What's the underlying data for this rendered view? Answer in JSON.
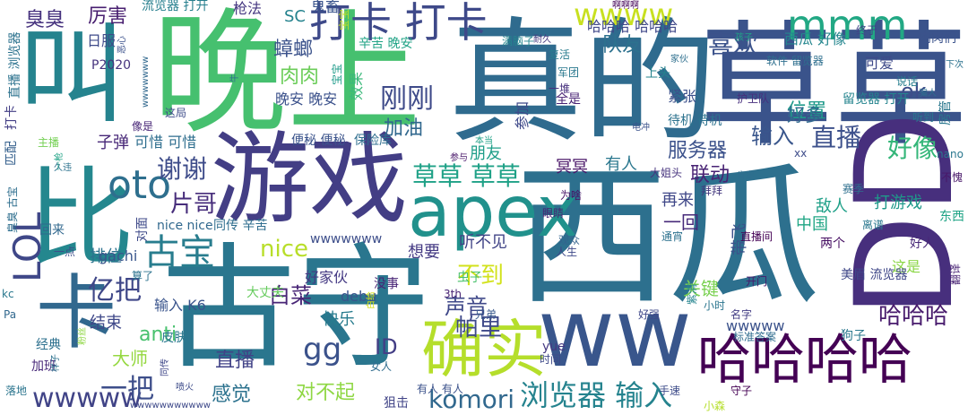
{
  "words": [
    {
      "t": "真的",
      "c": "#2f6b8e"
    },
    {
      "t": "草草",
      "c": "#3a538b"
    },
    {
      "t": "西瓜",
      "c": "#2d708e"
    },
    {
      "t": "晚上",
      "c": "#46c06f"
    },
    {
      "t": "游戏",
      "c": "#433e85"
    },
    {
      "t": "古守",
      "c": "#2a768e"
    },
    {
      "t": "apex",
      "c": "#21918c"
    },
    {
      "t": "ww",
      "c": "#39568c"
    },
    {
      "t": "DD",
      "c": "#472f7d"
    },
    {
      "t": "哈哈哈哈",
      "c": "#440154"
    },
    {
      "t": "确实",
      "c": "#b5de2b"
    },
    {
      "t": "打卡 打卡",
      "c": "#3e4989"
    },
    {
      "t": "mmm",
      "c": "#22a884"
    },
    {
      "t": "wwww",
      "c": "#c8e020"
    },
    {
      "t": "oto",
      "c": "#2e6f8e"
    },
    {
      "t": "草草 草草",
      "c": "#1fa187"
    },
    {
      "t": "浏览器 输入",
      "c": "#25838e"
    },
    {
      "t": "komori",
      "c": "#31688e"
    },
    {
      "t": "wwwww",
      "c": "#414487"
    },
    {
      "t": "喜欢",
      "c": "#3b528b"
    },
    {
      "t": "刚刚",
      "c": "#3e4a89"
    },
    {
      "t": "直播",
      "c": "#3c508b"
    },
    {
      "t": "好像",
      "c": "#34b679"
    },
    {
      "t": "一把",
      "c": "#3d4e8a"
    },
    {
      "t": "亿把",
      "c": "#3f4788"
    },
    {
      "t": "古宝",
      "c": "#287d8e"
    },
    {
      "t": "谢谢",
      "c": "#3e4c8a"
    },
    {
      "t": "片哥",
      "c": "#472d7b"
    },
    {
      "t": "nice",
      "c": "#b8de29"
    },
    {
      "t": "gg",
      "c": "#3b528b"
    },
    {
      "t": "对不起",
      "c": "#8fd744"
    },
    {
      "t": "感觉",
      "c": "#2c728e"
    },
    {
      "t": "哈哈哈",
      "c": "#481b6d"
    },
    {
      "t": "声音",
      "c": "#3f4889"
    },
    {
      "t": "帕里",
      "c": "#3e4989"
    },
    {
      "t": "不到",
      "c": "#d2e21b"
    },
    {
      "t": "白菜",
      "c": "#482576"
    },
    {
      "t": "ID",
      "c": "#433e85"
    },
    {
      "t": "直播",
      "c": "#414287"
    },
    {
      "t": "anti",
      "c": "#48c16e"
    },
    {
      "t": "大师",
      "c": "#95d840"
    },
    {
      "t": "输入 K6",
      "c": "#3a548c"
    },
    {
      "t": "排位",
      "c": "#2c728e"
    },
    {
      "t": "结束",
      "c": "#3f4889"
    },
    {
      "t": "快乐",
      "c": "#287c8e"
    },
    {
      "t": "位置",
      "c": "#1f9a8a"
    },
    {
      "t": "好多",
      "c": "#31688e"
    },
    {
      "t": "服务器",
      "c": "#3b518b"
    },
    {
      "t": "输入",
      "c": "#39568c"
    },
    {
      "t": "联动",
      "c": "#482374"
    },
    {
      "t": "队友",
      "c": "#2d718e"
    },
    {
      "t": "ok",
      "c": "#3d4d8a"
    },
    {
      "t": "肉肉",
      "c": "#6ccd5a"
    },
    {
      "t": "加油",
      "c": "#31688e"
    },
    {
      "t": "蟑螂",
      "c": "#3b528b"
    },
    {
      "t": "臭臭",
      "c": "#46327e"
    },
    {
      "t": "厉害",
      "c": "#481f70"
    },
    {
      "t": "日服",
      "c": "#3e4a89"
    },
    {
      "t": "哈哈哈 哈哈哈",
      "c": "#3f4788"
    },
    {
      "t": "西瓜 好像",
      "c": "#24868e"
    },
    {
      "t": "可爱",
      "c": "#3e4989"
    },
    {
      "t": "子弹",
      "c": "#482878"
    },
    {
      "t": "可惜 可惜",
      "c": "#2e6e8e"
    },
    {
      "t": "晚安 晚安",
      "c": "#3b518b"
    },
    {
      "t": "有人",
      "c": "#2a778e"
    },
    {
      "t": "再来",
      "c": "#3f4788"
    },
    {
      "t": "一回",
      "c": "#472a7a"
    },
    {
      "t": "打游戏",
      "c": "#1f998a"
    },
    {
      "t": "敌人",
      "c": "#1fa088"
    },
    {
      "t": "听不见",
      "c": "#414487"
    },
    {
      "t": "想要",
      "c": "#443a83"
    },
    {
      "t": "好家伙",
      "c": "#443983"
    },
    {
      "t": "wwwwwww",
      "c": "#3d4e8a"
    },
    {
      "t": "关键",
      "c": "#7ad151"
    },
    {
      "t": "中国",
      "c": "#21a685"
    },
    {
      "t": "两个",
      "c": "#471063"
    },
    {
      "t": "这是",
      "c": "#8bd646"
    },
    {
      "t": "wwwww",
      "c": "#3b528b"
    },
    {
      "t": "debu",
      "c": "#3a548c"
    },
    {
      "t": "没事",
      "c": "#482475"
    },
    {
      "t": "gachi",
      "c": "#39568c"
    },
    {
      "t": "nice nice",
      "c": "#31688e"
    },
    {
      "t": "冥冥",
      "c": "#481467"
    },
    {
      "t": "朋友",
      "c": "#1f9e89"
    },
    {
      "t": "宝宝",
      "c": "#1e9b8a"
    },
    {
      "t": "SC",
      "c": "#25838e"
    },
    {
      "t": "鬼畜",
      "c": "#3a548c"
    },
    {
      "t": "辛苦 晚安",
      "c": "#20a386"
    },
    {
      "t": "枪法",
      "c": "#453781"
    },
    {
      "t": "流览器 打开",
      "c": "#277f8e"
    },
    {
      "t": "留览器 打开",
      "c": "#25848e"
    },
    {
      "t": "待机 待机",
      "c": "#2c728e"
    },
    {
      "t": "美眉 流览器",
      "c": "#3f4788"
    },
    {
      "t": "保险库",
      "c": "#2e6e8e"
    },
    {
      "t": "便秘 便秘",
      "c": "#3a538b"
    },
    {
      "t": "P2020",
      "c": "#46337e"
    },
    {
      "t": "满脑子",
      "c": "#24868e"
    },
    {
      "t": "紧张",
      "c": "#3c508b"
    },
    {
      "t": "上头",
      "c": "#25848e"
    },
    {
      "t": "一堆",
      "c": "#46307e"
    },
    {
      "t": "全是",
      "c": "#482273"
    },
    {
      "t": "复活",
      "c": "#287c8e"
    },
    {
      "t": "这局",
      "c": "#3e4c8a"
    },
    {
      "t": "像是",
      "c": "#482777"
    },
    {
      "t": "算了",
      "c": "#2c738e"
    },
    {
      "t": "经典",
      "c": "#2d708e"
    },
    {
      "t": "加班",
      "c": "#482979"
    },
    {
      "t": "回来",
      "c": "#31688e"
    },
    {
      "t": "一点",
      "c": "#3c4f8a"
    },
    {
      "t": "同传 辛苦",
      "c": "#2e6d8e"
    },
    {
      "t": "直播间",
      "c": "#440154"
    },
    {
      "t": "观众",
      "c": "#33638d"
    },
    {
      "t": "人生",
      "c": "#3e4989"
    },
    {
      "t": "开门",
      "c": "#481a6c"
    },
    {
      "t": "名字",
      "c": "#433d84"
    },
    {
      "t": "标准答案",
      "c": "#2f6c8e"
    },
    {
      "t": "狗子",
      "c": "#2a788e"
    },
    {
      "t": "好人",
      "c": "#482878"
    },
    {
      "t": "翻译",
      "c": "#482374"
    },
    {
      "t": "东西",
      "c": "#20a486"
    },
    {
      "t": "不愧",
      "c": "#481769"
    },
    {
      "t": "nano",
      "c": "#2a778e"
    },
    {
      "t": "离谱",
      "c": "#2a778e"
    },
    {
      "t": "赛季",
      "c": "#2e6f8e"
    },
    {
      "t": "肯定",
      "c": "#2e6e8e"
    },
    {
      "t": "拜拜",
      "c": "#44397f"
    },
    {
      "t": "大姐头",
      "c": "#46337e"
    },
    {
      "t": "通宵",
      "c": "#2c718e"
    },
    {
      "t": "为啥",
      "c": "#481467"
    },
    {
      "t": "眼睛",
      "c": "#482173"
    },
    {
      "t": "好强",
      "c": "#3f4889"
    },
    {
      "t": "小时",
      "c": "#2b758e"
    },
    {
      "t": "兄弟",
      "c": "#38598c"
    },
    {
      "t": "3th",
      "c": "#482374"
    },
    {
      "t": "时间",
      "c": "#3e4989"
    },
    {
      "t": "女人",
      "c": "#2f6c8e"
    },
    {
      "t": "有人 有人",
      "c": "#3b528b"
    },
    {
      "t": "狙击",
      "c": "#414487"
    },
    {
      "t": "yue",
      "c": "#453882"
    },
    {
      "t": "手速",
      "c": "#3e4c8a"
    },
    {
      "t": "守子",
      "c": "#440154"
    },
    {
      "t": "小森",
      "c": "#b5de2b"
    },
    {
      "t": "wwwwwwwwwww",
      "c": "#3e4989"
    },
    {
      "t": "落地",
      "c": "#2b758e"
    },
    {
      "t": "Pa",
      "c": "#31688e"
    },
    {
      "t": "kc",
      "c": "#2a788e"
    },
    {
      "t": "打卡",
      "c": "#433e85"
    },
    {
      "t": "匹配",
      "c": "#35608d"
    },
    {
      "t": "主播",
      "c": "#75d054"
    },
    {
      "t": "参与",
      "c": "#481769"
    },
    {
      "t": "本当",
      "c": "#1fa187"
    },
    {
      "t": "电冲",
      "c": "#3b528b"
    },
    {
      "t": "说话",
      "c": "#277e8e"
    },
    {
      "t": "软件 留览器",
      "c": "#2e6f8e"
    },
    {
      "t": "啊啊啊",
      "c": "#46075a"
    },
    {
      "t": "耐久",
      "c": "#44397f"
    },
    {
      "t": "军团",
      "c": "#2a788e"
    },
    {
      "t": "xx",
      "c": "#3e4c8a"
    },
    {
      "t": "终于",
      "c": "#414487"
    },
    {
      "t": "肉肉们",
      "c": "#3b528b"
    },
    {
      "t": "下次",
      "c": "#2c728e"
    },
    {
      "t": "孩子",
      "c": "#20a386"
    },
    {
      "t": "骗人",
      "c": "#2e6e8e"
    },
    {
      "t": "听到",
      "c": "#2a768e"
    },
    {
      "t": "护卫队",
      "c": "#472f7d"
    },
    {
      "t": "家伙",
      "c": "#2e6f8e"
    },
    {
      "t": "宝宝",
      "c": "#c0df25"
    },
    {
      "t": "wwwwwww",
      "c": "#31688e"
    },
    {
      "t": "直播 浏览器",
      "c": "#2c728e"
    },
    {
      "t": "恶心",
      "c": "#3b518b"
    },
    {
      "t": "久违",
      "c": "#2c728e"
    },
    {
      "t": "大丈夫",
      "c": "#66cb5d"
    },
    {
      "t": "虫子",
      "c": "#4ac16d"
    },
    {
      "t": "对面",
      "c": "#3e4989"
    },
    {
      "t": "臭臭 古宝",
      "c": "#2e6e8e"
    },
    {
      "t": "一枪",
      "c": "#20a386"
    },
    {
      "t": "粉丝",
      "c": "#8fd744"
    },
    {
      "t": "样子",
      "c": "#2c718e"
    },
    {
      "t": "喷火",
      "c": "#3e4c8a"
    },
    {
      "t": "同传",
      "c": "#3f4788"
    },
    {
      "t": "皮肤",
      "c": "#2a788e"
    },
    {
      "t": "白给",
      "c": "#d8e219"
    },
    {
      "t": "参加",
      "c": "#3e4989"
    },
    {
      "t": "效果",
      "c": "#3ab97a"
    },
    {
      "t": "可惜 右下角",
      "c": "#3b528b"
    },
    {
      "t": "LOL",
      "c": "#3f4788"
    },
    {
      "t": "带飞",
      "c": "#3b528b"
    },
    {
      "t": "房管",
      "c": "#2a778e"
    },
    {
      "t": "紫清",
      "c": "#25848e"
    },
    {
      "t": "牛",
      "c": "#2e6e8e"
    },
    {
      "t": "比",
      "c": "#24878e"
    },
    {
      "t": "叫",
      "c": "#25838e"
    },
    {
      "t": "卡",
      "c": "#31688e"
    }
  ]
}
